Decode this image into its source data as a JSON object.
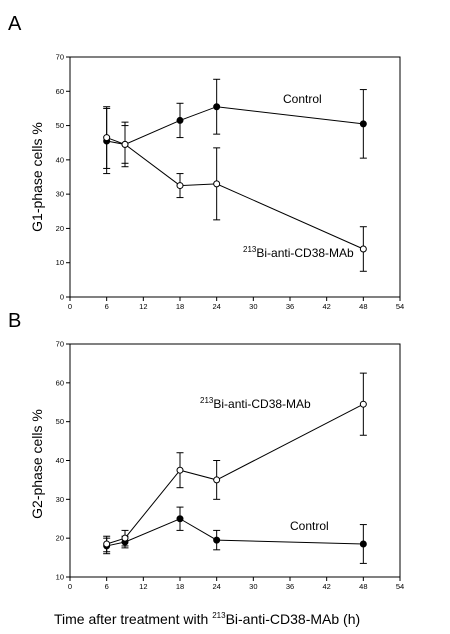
{
  "figure": {
    "xlabel": {
      "prefix": "Time after treatment with ",
      "sup": "213",
      "main": "Bi-anti-CD38-MAb (h)"
    }
  },
  "chart_data": [
    {
      "type": "line",
      "panel": "A",
      "ylabel": "G1-phase cells %",
      "xlim": [
        0,
        54
      ],
      "ylim": [
        0,
        70
      ],
      "xticks": [
        0,
        6,
        12,
        18,
        24,
        30,
        36,
        42,
        48,
        54
      ],
      "yticks": [
        0,
        10,
        20,
        30,
        40,
        50,
        60,
        70
      ],
      "series": [
        {
          "name": "Control",
          "marker": "filled",
          "x": [
            6,
            9,
            18,
            24,
            48
          ],
          "y": [
            45.5,
            44.5,
            51.5,
            55.5,
            50.5
          ],
          "err": [
            9.5,
            6.5,
            5,
            8,
            10
          ]
        },
        {
          "name_sup": "213",
          "name": "Bi-anti-CD38-MAb",
          "marker": "open",
          "x": [
            6,
            9,
            18,
            24,
            48
          ],
          "y": [
            46.5,
            44.5,
            32.5,
            33,
            14
          ],
          "err": [
            9,
            5.5,
            3.5,
            10.5,
            6.5
          ]
        }
      ]
    },
    {
      "type": "line",
      "panel": "B",
      "ylabel": "G2-phase cells %",
      "xlim": [
        0,
        54
      ],
      "ylim": [
        10,
        70
      ],
      "xticks": [
        0,
        6,
        12,
        18,
        24,
        30,
        36,
        42,
        48,
        54
      ],
      "yticks": [
        10,
        20,
        30,
        40,
        50,
        60,
        70
      ],
      "series": [
        {
          "name": "Control",
          "marker": "filled",
          "x": [
            6,
            9,
            18,
            24,
            48
          ],
          "y": [
            18,
            19,
            25,
            19.5,
            18.5
          ],
          "err": [
            2,
            1.5,
            3,
            2.5,
            5
          ]
        },
        {
          "name_sup": "213",
          "name": "Bi-anti-CD38-MAb",
          "marker": "open",
          "x": [
            6,
            9,
            18,
            24,
            48
          ],
          "y": [
            18.5,
            20,
            37.5,
            35,
            54.5
          ],
          "err": [
            2,
            2,
            4.5,
            5,
            8
          ]
        }
      ]
    }
  ]
}
